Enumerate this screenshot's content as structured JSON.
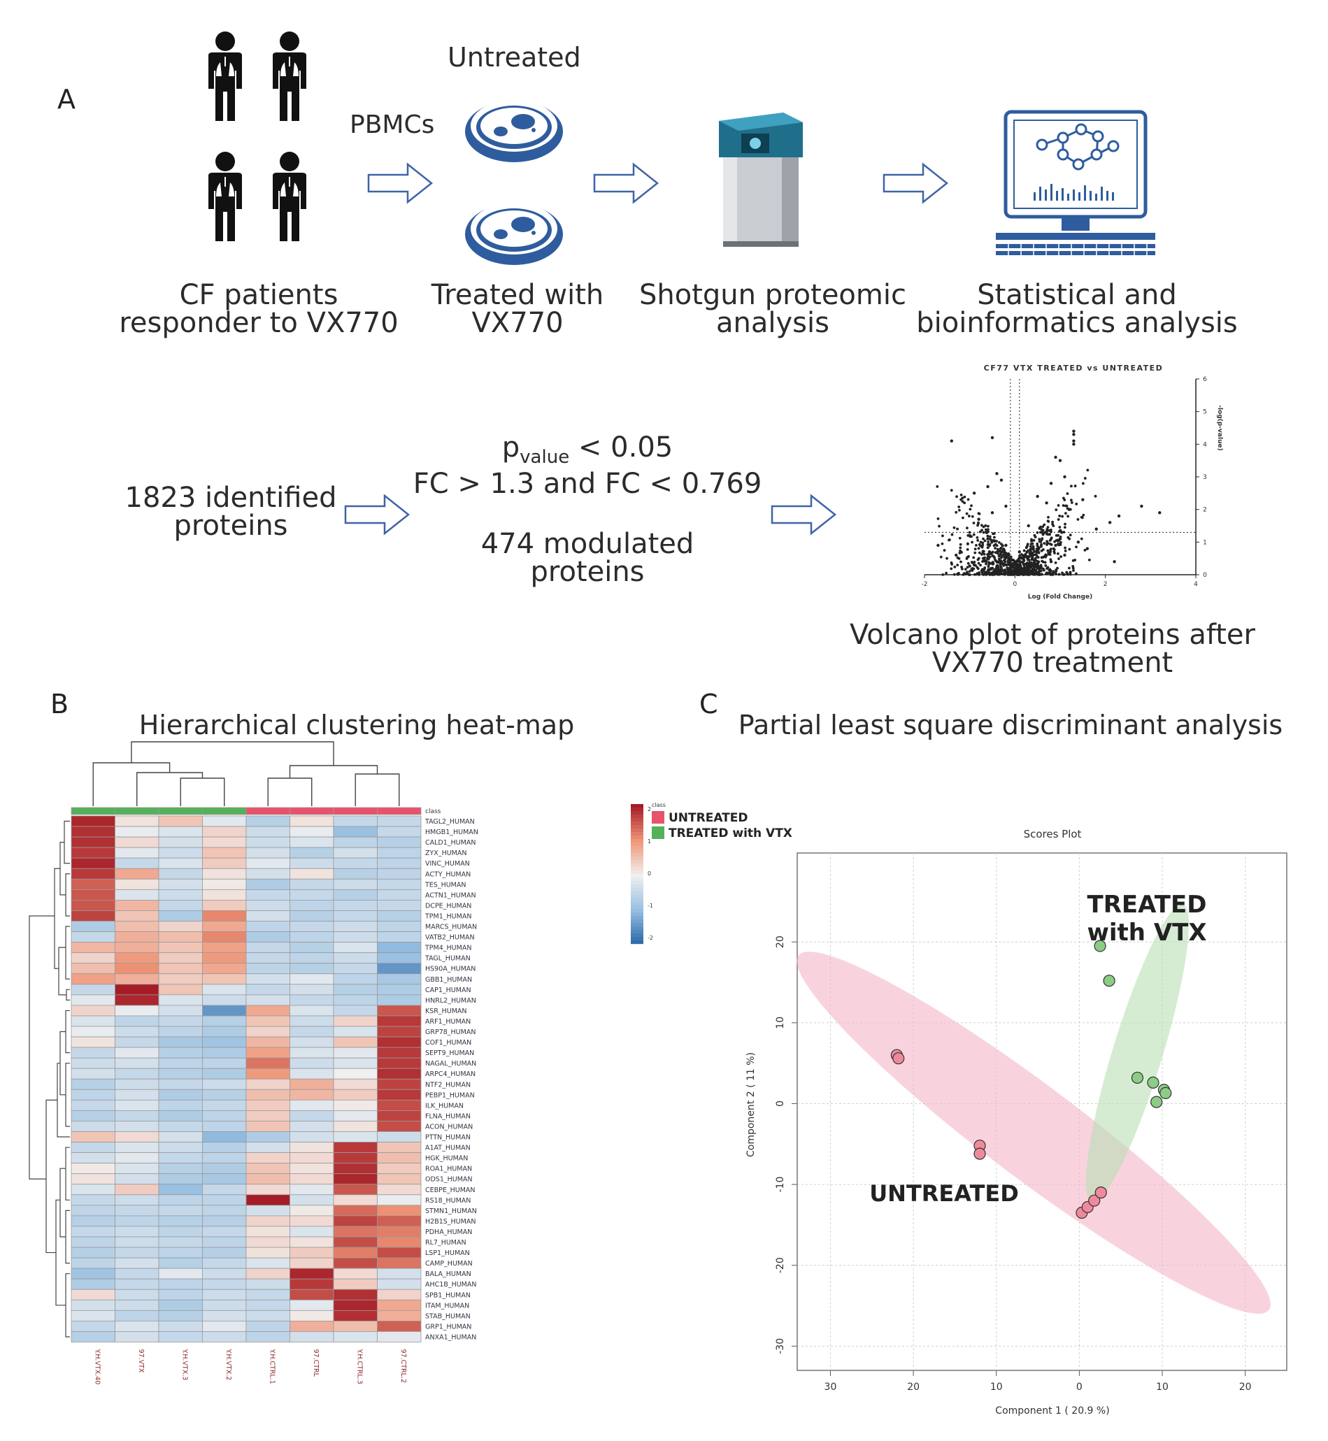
{
  "panel_a": {
    "label": "A",
    "step1": {
      "line1": "CF patients",
      "line2": "responder to VX770"
    },
    "arrow1_label": "PBMCs",
    "dish_top_label": "Untreated",
    "step2": {
      "line1": "Treated with",
      "line2": "VX770"
    },
    "step3": {
      "line1": "Shotgun proteomic",
      "line2": "analysis"
    },
    "step4": {
      "line1": "Statistical and",
      "line2": "bioinformatics analysis"
    },
    "identified": {
      "line1": "1823 identified",
      "line2": "proteins"
    },
    "criteria": {
      "p_main": "p",
      "p_sub": "value",
      "p_rest": " < 0.05",
      "fc": "FC > 1.3 and FC < 0.769"
    },
    "modulated": {
      "line1": "474 modulated",
      "line2": "proteins"
    },
    "volcano_caption": {
      "line1": "Volcano plot of proteins after",
      "line2": "VX770 treatment"
    }
  },
  "panel_b": {
    "label": "B",
    "title": "Hierarchical clustering heat-map"
  },
  "panel_c": {
    "label": "C",
    "title": "Partial least square discriminant analysis"
  },
  "colors": {
    "untreated": "#e8526b",
    "treated": "#55b05a",
    "icon_blue": "#2e5c9e",
    "arrow_blue": "#3f63a8"
  },
  "chart_data": [
    {
      "type": "scatter",
      "title": "CF77 VTX TREATED vs UNTREATED",
      "xlabel": "Log (Fold Change)",
      "ylabel": "-log(p-value)",
      "xlim": [
        -2,
        4
      ],
      "ylim": [
        0,
        6
      ],
      "xticks": [
        "-2",
        "0",
        "2",
        "4"
      ],
      "yticks": [
        "0",
        "1",
        "2",
        "3",
        "4",
        "5",
        "6"
      ],
      "thresholds": {
        "x": [
          -0.1,
          0.1
        ],
        "y": 1.3
      },
      "points": [
        [
          -1.4,
          4.1
        ],
        [
          -0.5,
          4.2
        ],
        [
          1.3,
          4.4
        ],
        [
          1.3,
          4.3
        ],
        [
          1.3,
          4.1
        ],
        [
          1.3,
          4.0
        ],
        [
          2.8,
          2.1
        ],
        [
          3.2,
          1.9
        ],
        [
          2.1,
          1.6
        ],
        [
          2.3,
          1.8
        ],
        [
          2.2,
          0.4
        ],
        [
          -1.7,
          0.9
        ],
        [
          -1.2,
          0.7
        ],
        [
          -0.9,
          2.5
        ],
        [
          -0.4,
          3.1
        ],
        [
          0.9,
          3.6
        ],
        [
          1.0,
          3.5
        ],
        [
          1.1,
          3.0
        ],
        [
          0.8,
          2.8
        ],
        [
          -0.6,
          2.7
        ],
        [
          -0.3,
          2.9
        ],
        [
          0.5,
          2.4
        ],
        [
          0.7,
          2.2
        ],
        [
          1.2,
          2.0
        ],
        [
          1.5,
          2.3
        ],
        [
          1.8,
          1.4
        ],
        [
          -1.0,
          1.2
        ],
        [
          -0.8,
          1.7
        ],
        [
          -0.5,
          1.9
        ],
        [
          -0.2,
          2.1
        ],
        [
          0.3,
          1.5
        ],
        [
          0.6,
          1.3
        ],
        [
          1.0,
          1.1
        ],
        [
          1.4,
          1.0
        ],
        [
          1.6,
          0.8
        ],
        [
          -1.3,
          0.6
        ],
        [
          -0.7,
          0.5
        ],
        [
          -0.3,
          0.4
        ],
        [
          0.2,
          0.3
        ],
        [
          0.5,
          0.2
        ],
        [
          0.8,
          0.4
        ],
        [
          1.1,
          0.6
        ],
        [
          -0.9,
          0.3
        ],
        [
          -0.5,
          0.2
        ],
        [
          0.0,
          0.1
        ],
        [
          0.4,
          0.6
        ],
        [
          0.9,
          0.9
        ],
        [
          -0.2,
          0.9
        ],
        [
          -0.6,
          1.1
        ],
        [
          0.1,
          0.7
        ]
      ],
      "annotation": "~1823 points (dense cloud)"
    },
    {
      "type": "heatmap",
      "title": "Hierarchical clustering heat-map",
      "columns": [
        "Y.H.VTX.40",
        "97.VTX",
        "Y.H.VTX.3",
        "Y.H.VTX.2",
        "Y.H.CTRL.1",
        "97.CTRL",
        "Y.H.CTRL.3",
        "97.CTRL.2"
      ],
      "column_class": [
        "TREATED with VTX",
        "TREATED with VTX",
        "TREATED with VTX",
        "TREATED with VTX",
        "UNTREATED",
        "UNTREATED",
        "UNTREATED",
        "UNTREATED"
      ],
      "legend": {
        "title": "class",
        "entries": [
          "UNTREATED",
          "TREATED with VTX"
        ],
        "scale": [
          "2",
          "1",
          "0",
          "-1",
          "-2"
        ]
      },
      "rows": [
        "TAGL2_HUMAN",
        "HMGB1_HUMAN",
        "CALD1_HUMAN",
        "ZYX_HUMAN",
        "VINC_HUMAN",
        "ACTY_HUMAN",
        "TES_HUMAN",
        "ACTN1_HUMAN",
        "DCPE_HUMAN",
        "TPM1_HUMAN",
        "MARCS_HUMAN",
        "VATB2_HUMAN",
        "TPM4_HUMAN",
        "TAGL_HUMAN",
        "HS90A_HUMAN",
        "GBB1_HUMAN",
        "CAP1_HUMAN",
        "HNRL2_HUMAN",
        "KSR_HUMAN",
        "ARF1_HUMAN",
        "GRP78_HUMAN",
        "COF1_HUMAN",
        "SEPT9_HUMAN",
        "NAGAL_HUMAN",
        "ARPC4_HUMAN",
        "NTF2_HUMAN",
        "PEBP1_HUMAN",
        "ILK_HUMAN",
        "FLNA_HUMAN",
        "ACON_HUMAN",
        "PTTN_HUMAN",
        "A1AT_HUMAN",
        "HGK_HUMAN",
        "ROA1_HUMAN",
        "ODS1_HUMAN",
        "CEBPE_HUMAN",
        "RS18_HUMAN",
        "STMN1_HUMAN",
        "H2B1S_HUMAN",
        "PDHA_HUMAN",
        "RL7_HUMAN",
        "LSP1_HUMAN",
        "CAMP_HUMAN",
        "BALA_HUMAN",
        "AHC1B_HUMAN",
        "SPB1_HUMAN",
        "ITAM_HUMAN",
        "STAB_HUMAN",
        "GRP1_HUMAN",
        "ANXA1_HUMAN"
      ],
      "values": [
        [
          2.4,
          0.2,
          0.6,
          -0.2,
          -0.8,
          0.2,
          -0.6,
          -0.6
        ],
        [
          2.3,
          -0.1,
          -0.3,
          0.4,
          -0.5,
          -0.1,
          -1.2,
          -0.6
        ],
        [
          2.3,
          0.3,
          -0.4,
          0.3,
          -0.5,
          -0.3,
          -0.7,
          -0.8
        ],
        [
          2.2,
          -0.2,
          -0.5,
          0.6,
          -0.4,
          -0.8,
          -0.4,
          -0.7
        ],
        [
          2.4,
          -0.6,
          -0.3,
          0.5,
          -0.2,
          -0.5,
          -0.6,
          -0.7
        ],
        [
          2.2,
          1.0,
          -0.6,
          0.2,
          -0.4,
          0.2,
          -0.8,
          -0.7
        ],
        [
          1.8,
          0.2,
          -0.4,
          0.1,
          -0.9,
          -0.6,
          -0.5,
          -0.6
        ],
        [
          1.9,
          -0.3,
          -0.5,
          0.2,
          -0.6,
          -0.6,
          -0.8,
          -0.6
        ],
        [
          1.9,
          0.8,
          -0.6,
          0.5,
          -0.5,
          -0.7,
          -0.6,
          -0.6
        ],
        [
          2.1,
          0.6,
          -0.9,
          1.4,
          -0.4,
          -0.8,
          -0.6,
          -0.8
        ],
        [
          -0.9,
          0.7,
          0.4,
          1.0,
          -0.7,
          -0.6,
          -0.5,
          -0.7
        ],
        [
          -0.6,
          0.9,
          0.7,
          1.4,
          -0.9,
          -0.7,
          -0.5,
          -0.7
        ],
        [
          0.8,
          0.9,
          0.6,
          1.1,
          -0.6,
          -0.8,
          -0.3,
          -1.3
        ],
        [
          0.4,
          1.2,
          0.5,
          1.2,
          -0.6,
          -0.7,
          -0.5,
          -1.2
        ],
        [
          0.7,
          1.3,
          0.6,
          1.0,
          -0.7,
          -0.8,
          -0.6,
          -1.8
        ],
        [
          1.1,
          0.9,
          0.5,
          0.6,
          -0.4,
          -0.2,
          -0.7,
          -1.0
        ],
        [
          -0.6,
          2.6,
          0.6,
          -0.3,
          -0.6,
          -0.4,
          -0.8,
          -0.9
        ],
        [
          -0.2,
          2.4,
          -0.3,
          -0.5,
          -0.4,
          -0.6,
          -0.7,
          -0.9
        ],
        [
          0.4,
          -0.1,
          -0.4,
          -1.8,
          1.0,
          -0.3,
          -0.6,
          1.9
        ],
        [
          -0.3,
          -0.7,
          -0.6,
          -0.8,
          0.6,
          -0.5,
          0.4,
          2.2
        ],
        [
          -0.1,
          -0.5,
          -0.7,
          -0.9,
          0.4,
          -0.6,
          -0.3,
          2.1
        ],
        [
          0.2,
          -0.6,
          -1.0,
          -1.1,
          0.8,
          -0.4,
          0.6,
          2.3
        ],
        [
          -0.6,
          -0.2,
          -0.8,
          -0.9,
          1.1,
          -0.3,
          -0.2,
          2.2
        ],
        [
          -0.5,
          -0.4,
          -0.7,
          -0.7,
          1.6,
          -0.5,
          -0.3,
          2.2
        ],
        [
          -0.4,
          -0.6,
          -0.8,
          -0.9,
          1.2,
          -0.3,
          0.0,
          2.3
        ],
        [
          -0.8,
          -0.5,
          -0.6,
          -0.5,
          0.4,
          0.9,
          0.3,
          2.1
        ],
        [
          -0.7,
          -0.4,
          -0.9,
          -0.8,
          0.7,
          0.8,
          0.5,
          2.2
        ],
        [
          -0.6,
          -0.3,
          -0.7,
          -0.6,
          0.5,
          -0.2,
          0.1,
          2.0
        ],
        [
          -0.8,
          -0.6,
          -0.9,
          -0.7,
          0.5,
          -0.6,
          -0.2,
          2.1
        ],
        [
          -0.5,
          -0.4,
          -0.6,
          -0.7,
          0.6,
          -0.4,
          0.2,
          2.0
        ],
        [
          0.6,
          0.3,
          -0.4,
          -1.3,
          -0.9,
          -0.4,
          -0.3,
          -0.5
        ],
        [
          -0.6,
          -0.3,
          -0.5,
          -0.8,
          -0.4,
          0.2,
          2.2,
          0.6
        ],
        [
          -0.4,
          -0.2,
          -0.6,
          -0.7,
          0.4,
          0.3,
          2.2,
          0.7
        ],
        [
          0.1,
          -0.3,
          -0.8,
          -0.9,
          0.6,
          0.2,
          2.3,
          0.5
        ],
        [
          0.2,
          -0.4,
          -0.9,
          -1.0,
          0.7,
          0.3,
          2.4,
          0.6
        ],
        [
          -0.3,
          0.5,
          -1.2,
          -0.6,
          0.3,
          -0.2,
          1.9,
          0.3
        ],
        [
          -0.6,
          -0.5,
          -0.7,
          -0.7,
          2.6,
          -0.4,
          0.3,
          -0.1
        ],
        [
          -0.7,
          -0.6,
          -0.6,
          -0.7,
          -0.4,
          0.1,
          1.7,
          1.3
        ],
        [
          -0.8,
          -0.7,
          -0.8,
          -0.8,
          0.4,
          0.3,
          2.1,
          1.8
        ],
        [
          -0.6,
          -0.5,
          -0.7,
          -0.6,
          0.2,
          -0.3,
          1.6,
          1.5
        ],
        [
          -0.7,
          -0.5,
          -0.6,
          -0.7,
          0.3,
          0.2,
          2.0,
          1.4
        ],
        [
          -0.8,
          -0.6,
          -0.7,
          -0.8,
          0.2,
          0.5,
          1.5,
          2.0
        ],
        [
          -0.7,
          -0.4,
          -0.8,
          -0.6,
          -0.3,
          0.4,
          2.0,
          1.6
        ],
        [
          -1.1,
          -0.6,
          -0.2,
          -0.5,
          0.4,
          2.4,
          0.3,
          -0.4
        ],
        [
          -0.9,
          -0.6,
          -0.7,
          -0.6,
          -0.5,
          2.2,
          0.5,
          -0.4
        ],
        [
          0.3,
          -0.5,
          -0.7,
          -0.5,
          -0.6,
          2.0,
          2.3,
          0.4
        ],
        [
          -0.4,
          -0.5,
          -0.9,
          -0.5,
          -0.6,
          -0.2,
          2.4,
          1.0
        ],
        [
          -0.3,
          -0.7,
          -0.8,
          -0.4,
          -0.5,
          0.1,
          2.3,
          0.9
        ],
        [
          -0.6,
          -0.3,
          -0.5,
          -0.2,
          -0.7,
          0.9,
          0.7,
          1.8
        ],
        [
          -0.8,
          -0.4,
          -0.6,
          -0.5,
          -0.7,
          -0.4,
          -0.3,
          -0.2
        ]
      ]
    },
    {
      "type": "scatter",
      "title": "Scores Plot",
      "xlabel": "Component 1 ( 20.9 %)",
      "ylabel": "Component 2 ( 11 %)",
      "xlim": [
        -34,
        25
      ],
      "ylim": [
        -33,
        31
      ],
      "xticks": [
        "30",
        "20",
        "10",
        "0",
        "10",
        "20"
      ],
      "yticks": [
        "20",
        "10",
        "0",
        "-10",
        "-20",
        "-30"
      ],
      "series": [
        {
          "name": "UNTREATED",
          "points": [
            [
              -22,
              6
            ],
            [
              -21.8,
              5.6
            ],
            [
              -12,
              -5.2
            ],
            [
              -12,
              -6.2
            ],
            [
              0.3,
              -13.5
            ],
            [
              1,
              -12.8
            ],
            [
              1.8,
              -12
            ],
            [
              2.6,
              -11
            ]
          ]
        },
        {
          "name": "TREATED with VTX",
          "points": [
            [
              2.5,
              19.5
            ],
            [
              3.6,
              15.2
            ],
            [
              7,
              3.2
            ],
            [
              8.9,
              2.6
            ],
            [
              10.2,
              1.7
            ],
            [
              10.4,
              1.3
            ],
            [
              9.3,
              0.2
            ]
          ]
        }
      ],
      "annotations": [
        {
          "text": "TREATED",
          "text2": "with VTX"
        },
        {
          "text": "UNTREATED"
        }
      ]
    }
  ]
}
